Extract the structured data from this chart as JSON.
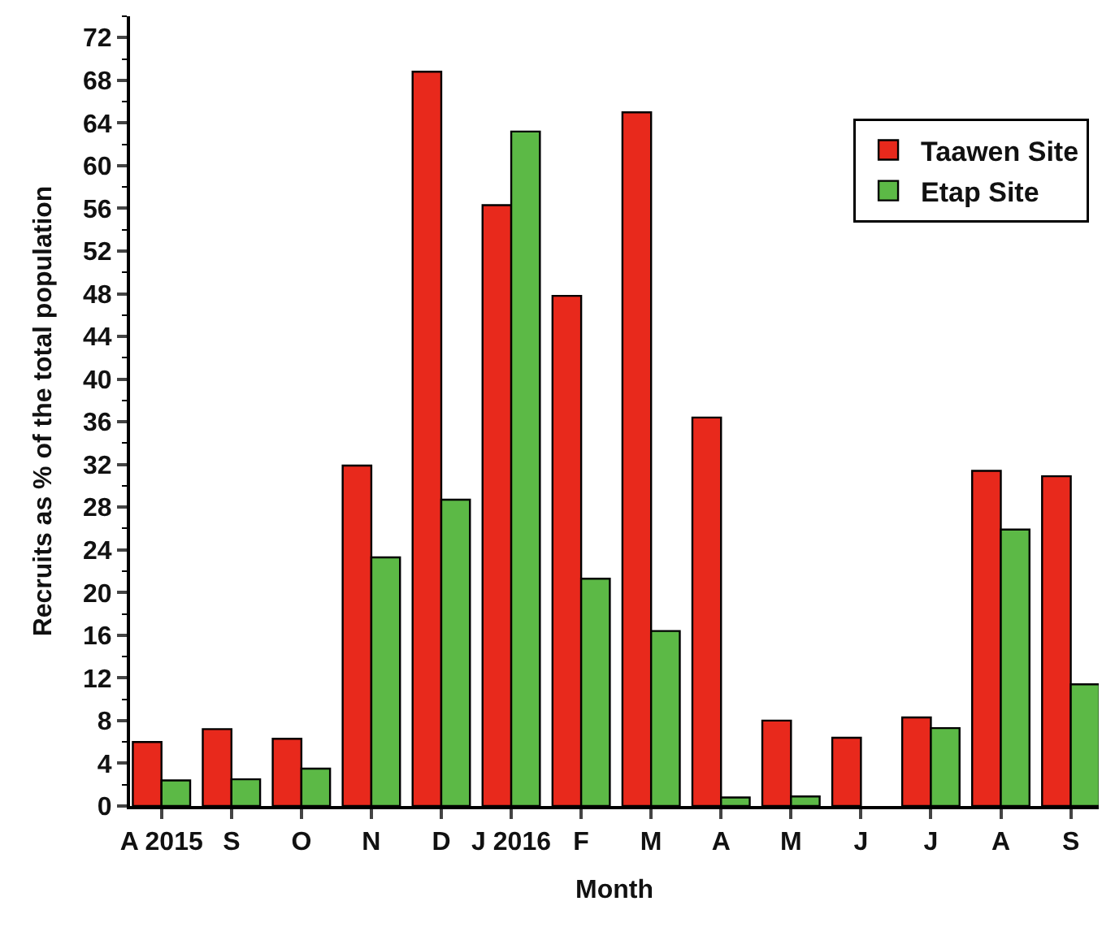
{
  "chart_data": {
    "type": "bar",
    "xlabel": "Month",
    "ylabel": "Recruits as % of the total population",
    "categories": [
      "A 2015",
      "S",
      "O",
      "N",
      "D",
      "J 2016",
      "F",
      "M",
      "A",
      "M",
      "J",
      "J",
      "A",
      "S"
    ],
    "series": [
      {
        "name": "Taawen Site",
        "color": "#e8291c",
        "values": [
          6.0,
          7.2,
          6.3,
          31.9,
          68.8,
          56.3,
          47.8,
          65.0,
          36.4,
          8.0,
          6.4,
          8.3,
          31.4,
          30.9
        ]
      },
      {
        "name": "Etap Site",
        "color": "#5cb946",
        "values": [
          2.4,
          2.5,
          3.5,
          23.3,
          28.7,
          63.2,
          21.3,
          16.4,
          0.8,
          0.9,
          null,
          7.3,
          25.9,
          11.4
        ]
      }
    ],
    "ylim": [
      0,
      74
    ],
    "yticks": [
      0,
      4,
      8,
      12,
      16,
      20,
      24,
      28,
      32,
      36,
      40,
      44,
      48,
      52,
      56,
      60,
      64,
      68,
      72
    ],
    "legend": "top right"
  }
}
